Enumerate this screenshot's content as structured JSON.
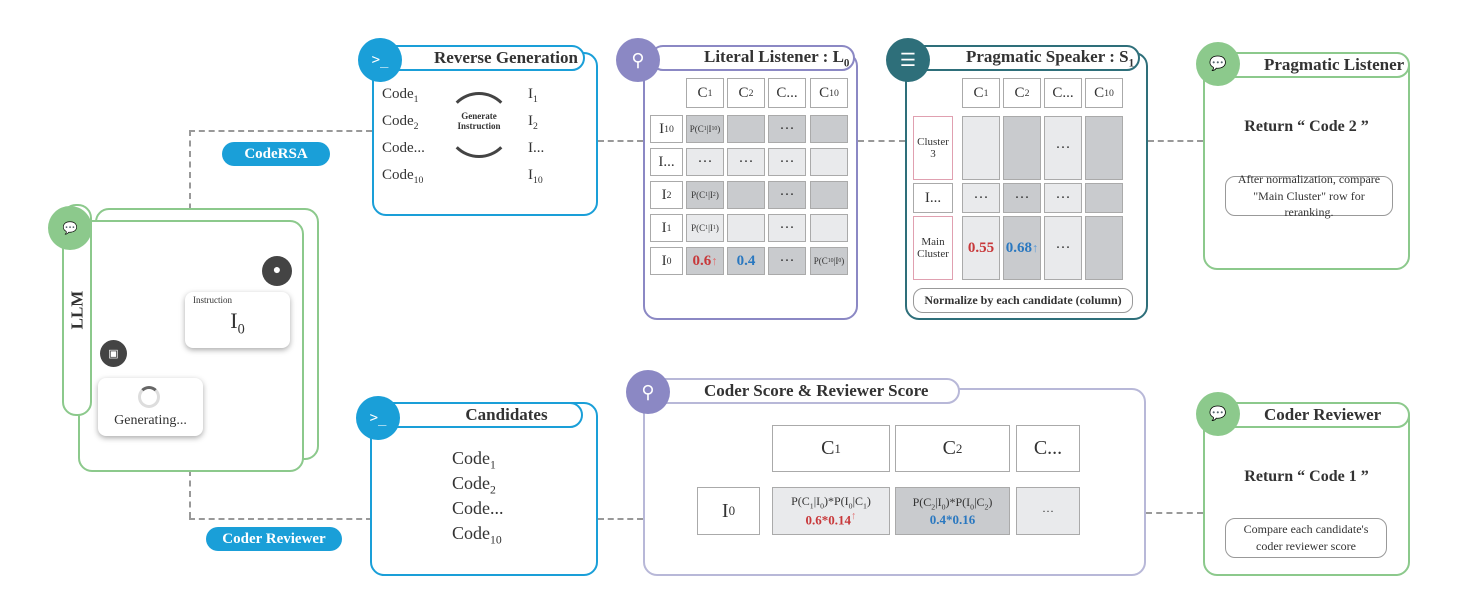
{
  "colors": {
    "blue": "#1a9fd8",
    "purple": "#8b88c4",
    "teal": "#2e6f7a",
    "green": "#8cc98c",
    "red": "#c8383a",
    "accent_blue": "#2a78c0"
  },
  "llm": {
    "label": "LLM",
    "instruction_caption": "Instruction",
    "instruction_value": "I_{0}",
    "generating": "Generating..."
  },
  "tags": {
    "coderrsa": "CodeRSA",
    "coder_reviewer": "Coder Reviewer"
  },
  "reverse": {
    "title": "Reverse Generation",
    "codes": [
      "Code_{1}",
      "Code_{2}",
      "Code...",
      "Code_{10}"
    ],
    "instructions": [
      "I_{1}",
      "I_{2}",
      "I...",
      "I_{10}"
    ],
    "cycle_label": "Generate Instruction"
  },
  "literal": {
    "title": "Literal Listener : L_{0}",
    "cols": [
      "C_{1}",
      "C_{2}",
      "C...",
      "C_{10}"
    ],
    "rows": [
      {
        "label": "I_{10}",
        "cells": [
          "P(C_{1}|I_{10})",
          "",
          "···",
          ""
        ],
        "shade": "d"
      },
      {
        "label": "I...",
        "cells": [
          "···",
          "···",
          "···",
          ""
        ],
        "shade": "l"
      },
      {
        "label": "I_{2}",
        "cells": [
          "P(C_{1}|I_{2})",
          "",
          "···",
          ""
        ],
        "shade": "d"
      },
      {
        "label": "I_{1}",
        "cells": [
          "P(C_{1}|I_{1})",
          "",
          "···",
          ""
        ],
        "shade": "l"
      },
      {
        "label": "I_{0}",
        "cells": [
          "0.6",
          "0.4",
          "···",
          "P(C_{10}|I_{0})"
        ],
        "shade": "d"
      }
    ]
  },
  "speaker": {
    "title": "Pragmatic Speaker : S_{1}",
    "cols": [
      "C_{1}",
      "C_{2}",
      "C...",
      "C_{10}"
    ],
    "rows": [
      {
        "label": "Cluster 3",
        "cells": [
          "",
          "",
          "···",
          ""
        ]
      },
      {
        "label": "I...",
        "cells": [
          "···",
          "···",
          "···",
          ""
        ]
      },
      {
        "label": "Main Cluster",
        "cells": [
          "0.55",
          "0.68",
          "···",
          ""
        ]
      }
    ],
    "note": "Normalize by  each  candidate (column)"
  },
  "prag_listener": {
    "title": "Pragmatic Listener",
    "result": "Return “ Code 2 ”",
    "note": "After normalization, compare \"Main Cluster\" row for reranking."
  },
  "candidates": {
    "title": "Candidates",
    "codes": [
      "Code_{1}",
      "Code_{2}",
      "Code...",
      "Code_{10}"
    ]
  },
  "score": {
    "title": "Coder Score & Reviewer Score",
    "cols": [
      "C_{1}",
      "C_{2}",
      "C..."
    ],
    "row_label": "I_{0}",
    "cells": [
      {
        "formula": "P(C_{1}|I_{0})*P(I_{0}|C_{1})",
        "value": "0.6*0.14"
      },
      {
        "formula": "P(C_{2}|I_{0})*P(I_{0}|C_{2})",
        "value": "0.4*0.16"
      },
      {
        "formula": "···",
        "value": ""
      }
    ]
  },
  "coder_reviewer": {
    "title": "Coder Reviewer",
    "result": "Return “ Code 1 ”",
    "note": "Compare each candidate's coder reviewer score"
  },
  "icon_labels": {
    "ai": "AI"
  }
}
